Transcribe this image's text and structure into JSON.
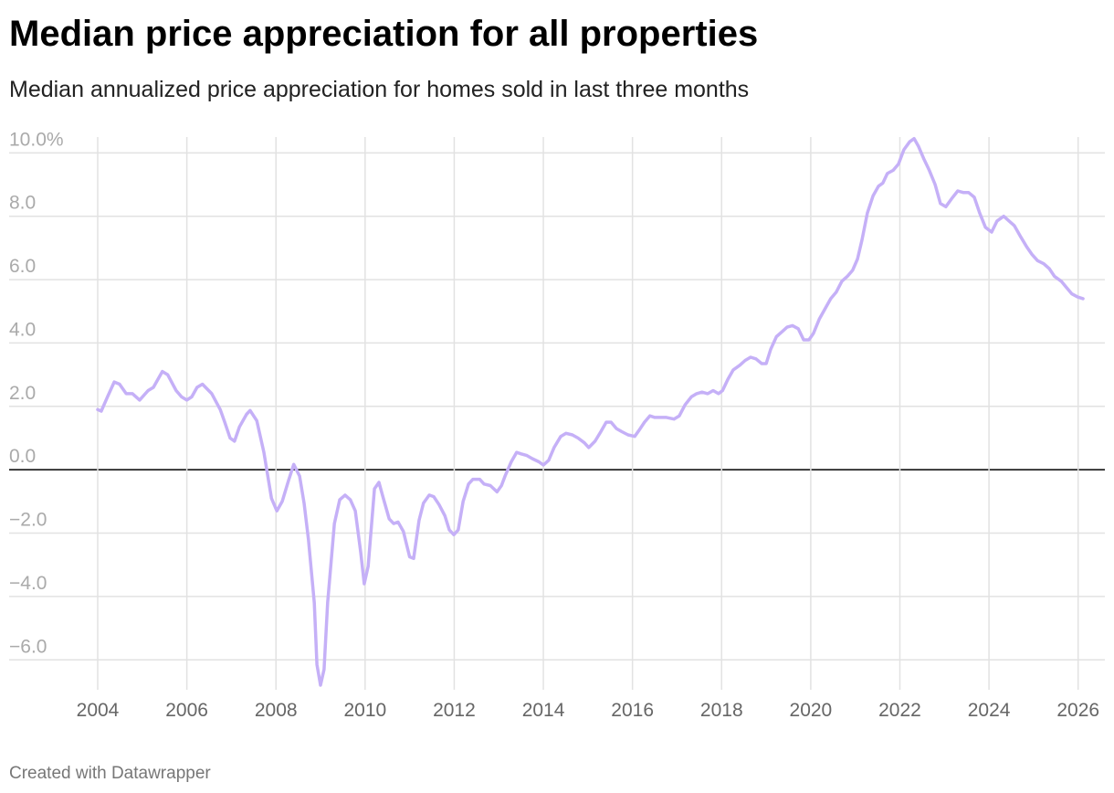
{
  "chart_data": {
    "type": "line",
    "title": "Median price appreciation for all properties",
    "subtitle": "Median annualized price appreciation for homes sold in last three months",
    "footer": "Created with Datawrapper",
    "color": "#c5b0f7",
    "grid": true,
    "x": [
      2004.0,
      2004.08,
      2004.22,
      2004.37,
      2004.49,
      2004.64,
      2004.78,
      2004.94,
      2005.13,
      2005.25,
      2005.45,
      2005.57,
      2005.76,
      2005.88,
      2006.0,
      2006.11,
      2006.23,
      2006.35,
      2006.56,
      2006.75,
      2006.85,
      2006.97,
      2007.07,
      2007.18,
      2007.34,
      2007.42,
      2007.57,
      2007.73,
      2007.9,
      2008.02,
      2008.14,
      2008.28,
      2008.4,
      2008.53,
      2008.63,
      2008.73,
      2008.86,
      2008.92,
      2009.0,
      2009.08,
      2009.16,
      2009.31,
      2009.43,
      2009.55,
      2009.67,
      2009.78,
      2009.9,
      2009.98,
      2010.07,
      2010.21,
      2010.31,
      2010.41,
      2010.54,
      2010.64,
      2010.74,
      2010.86,
      2011.0,
      2011.09,
      2011.21,
      2011.31,
      2011.44,
      2011.54,
      2011.66,
      2011.79,
      2011.89,
      2011.99,
      2012.09,
      2012.2,
      2012.32,
      2012.42,
      2012.57,
      2012.67,
      2012.81,
      2012.96,
      2013.06,
      2013.14,
      2013.28,
      2013.4,
      2013.5,
      2013.63,
      2013.75,
      2013.9,
      2014.0,
      2014.12,
      2014.24,
      2014.39,
      2014.51,
      2014.65,
      2014.78,
      2014.92,
      2015.02,
      2015.16,
      2015.29,
      2015.41,
      2015.52,
      2015.64,
      2015.76,
      2015.9,
      2016.05,
      2016.15,
      2016.27,
      2016.39,
      2016.5,
      2016.64,
      2016.76,
      2016.93,
      2017.05,
      2017.18,
      2017.32,
      2017.44,
      2017.56,
      2017.69,
      2017.81,
      2017.93,
      2018.02,
      2018.14,
      2018.26,
      2018.41,
      2018.53,
      2018.65,
      2018.77,
      2018.9,
      2019.0,
      2019.1,
      2019.23,
      2019.35,
      2019.47,
      2019.59,
      2019.72,
      2019.84,
      2019.96,
      2020.06,
      2020.19,
      2020.31,
      2020.45,
      2020.57,
      2020.7,
      2020.82,
      2020.94,
      2021.05,
      2021.15,
      2021.27,
      2021.4,
      2021.52,
      2021.62,
      2021.72,
      2021.85,
      2021.97,
      2022.09,
      2022.22,
      2022.32,
      2022.42,
      2022.54,
      2022.66,
      2022.79,
      2022.91,
      2023.03,
      2023.16,
      2023.3,
      2023.42,
      2023.54,
      2023.67,
      2023.79,
      2023.92,
      2024.06,
      2024.18,
      2024.33,
      2024.45,
      2024.57,
      2024.71,
      2024.84,
      2024.96,
      2025.09,
      2025.23,
      2025.35,
      2025.47,
      2025.62,
      2025.74,
      2025.86,
      2025.99,
      2026.11
    ],
    "values": [
      1.9,
      1.85,
      2.3,
      2.77,
      2.7,
      2.4,
      2.4,
      2.2,
      2.5,
      2.6,
      3.1,
      3.0,
      2.5,
      2.3,
      2.2,
      2.3,
      2.6,
      2.7,
      2.4,
      1.9,
      1.5,
      1.0,
      0.9,
      1.35,
      1.75,
      1.87,
      1.55,
      0.55,
      -0.9,
      -1.3,
      -1.0,
      -0.35,
      0.17,
      -0.2,
      -1.05,
      -2.2,
      -4.2,
      -6.15,
      -6.8,
      -6.3,
      -4.2,
      -1.7,
      -0.95,
      -0.8,
      -0.95,
      -1.3,
      -2.6,
      -3.6,
      -3.05,
      -0.6,
      -0.4,
      -0.9,
      -1.55,
      -1.7,
      -1.65,
      -1.95,
      -2.75,
      -2.8,
      -1.6,
      -1.05,
      -0.8,
      -0.85,
      -1.1,
      -1.45,
      -1.9,
      -2.05,
      -1.9,
      -1.0,
      -0.45,
      -0.3,
      -0.3,
      -0.45,
      -0.5,
      -0.7,
      -0.5,
      -0.2,
      0.25,
      0.55,
      0.5,
      0.45,
      0.35,
      0.25,
      0.15,
      0.3,
      0.7,
      1.05,
      1.15,
      1.1,
      1.0,
      0.85,
      0.7,
      0.9,
      1.2,
      1.5,
      1.5,
      1.3,
      1.2,
      1.1,
      1.05,
      1.25,
      1.5,
      1.7,
      1.65,
      1.65,
      1.65,
      1.6,
      1.7,
      2.05,
      2.3,
      2.4,
      2.45,
      2.4,
      2.5,
      2.4,
      2.5,
      2.85,
      3.15,
      3.3,
      3.45,
      3.55,
      3.5,
      3.35,
      3.35,
      3.8,
      4.2,
      4.35,
      4.5,
      4.55,
      4.45,
      4.1,
      4.1,
      4.3,
      4.75,
      5.05,
      5.4,
      5.6,
      5.95,
      6.1,
      6.3,
      6.65,
      7.25,
      8.1,
      8.65,
      8.95,
      9.05,
      9.35,
      9.45,
      9.65,
      10.1,
      10.35,
      10.45,
      10.2,
      9.8,
      9.45,
      9.0,
      8.4,
      8.3,
      8.55,
      8.8,
      8.75,
      8.75,
      8.6,
      8.1,
      7.65,
      7.5,
      7.85,
      8.0,
      7.85,
      7.7,
      7.35,
      7.05,
      6.8,
      6.6,
      6.5,
      6.35,
      6.1,
      5.95,
      5.75,
      5.55,
      5.45,
      5.4
    ],
    "xlim": [
      2004,
      2026.6
    ],
    "ylim": [
      -6.8,
      10.5
    ],
    "xticks": [
      2004,
      2006,
      2008,
      2010,
      2012,
      2014,
      2016,
      2018,
      2020,
      2022,
      2024,
      2026
    ],
    "yticks": [
      {
        "value": -6,
        "label": "−6.0"
      },
      {
        "value": -4,
        "label": "−4.0"
      },
      {
        "value": -2,
        "label": "−2.0"
      },
      {
        "value": 0,
        "label": "0.0"
      },
      {
        "value": 2,
        "label": "2.0"
      },
      {
        "value": 4,
        "label": "4.0"
      },
      {
        "value": 6,
        "label": "6.0"
      },
      {
        "value": 8,
        "label": "8.0"
      },
      {
        "value": 10,
        "label": "10.0%"
      }
    ]
  }
}
